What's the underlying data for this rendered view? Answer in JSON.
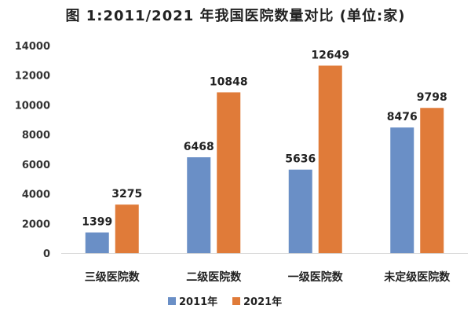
{
  "chart_data": {
    "type": "bar",
    "title": "图 1:2011/2021 年我国医院数量对比    (单位:家)",
    "categories": [
      "三级医院数",
      "二级医院数",
      "一级医院数",
      "未定级医院数"
    ],
    "series": [
      {
        "name": "2011年",
        "color": "#6a8fc6",
        "values": [
          1399,
          6468,
          5636,
          8476
        ]
      },
      {
        "name": "2021年",
        "color": "#e07b39",
        "values": [
          3275,
          10848,
          12649,
          9798
        ]
      }
    ],
    "ylim": [
      0,
      14000
    ],
    "yticks": [
      0,
      2000,
      4000,
      6000,
      8000,
      10000,
      12000,
      14000
    ],
    "xlabel": "",
    "ylabel": "",
    "grid": false,
    "legend": "bottom",
    "data_labels": true
  }
}
